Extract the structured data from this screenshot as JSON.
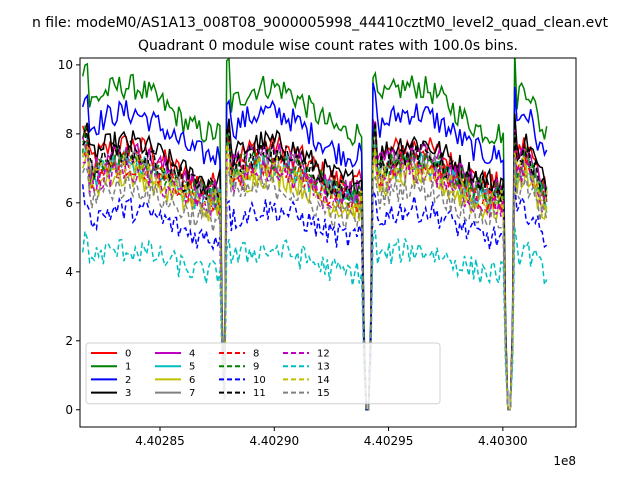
{
  "chart_data": {
    "type": "line",
    "suptitle": "n file: modeM0/AS1A13_008T08_9000005998_44410cztM0_level2_quad_clean.evt",
    "title": "Quadrant 0 module wise count rates with 100.0s bins.",
    "xlabel": "",
    "ylabel": "",
    "x_offset_label": "1e8",
    "xlim": [
      440281500,
      440303200
    ],
    "ylim": [
      -0.5,
      10.2
    ],
    "xticks": [
      440285000,
      440290000,
      440295000,
      440300000
    ],
    "xtick_labels": [
      "4.40285",
      "4.40290",
      "4.40295",
      "4.40300"
    ],
    "yticks": [
      0,
      2,
      4,
      6,
      8,
      10
    ],
    "ytick_labels": [
      "0",
      "2",
      "4",
      "6",
      "8",
      "10"
    ],
    "grid": false,
    "legend_position": "lower-left",
    "legend_columns": 4,
    "time_start": 440281620,
    "time_end": 440302000,
    "bin_seconds": 100,
    "gaps": [
      {
        "start": 440287700,
        "end": 440287870,
        "min_value": 0.3
      },
      {
        "start": 440293860,
        "end": 440294230,
        "min_value": 0.0
      },
      {
        "start": 440300050,
        "end": 440300460,
        "min_value": 0.0
      }
    ],
    "series": [
      {
        "name": "0",
        "color": "#ff0000",
        "dash": "solid",
        "base": 7.1
      },
      {
        "name": "1",
        "color": "#008000",
        "dash": "solid",
        "base": 8.7
      },
      {
        "name": "2",
        "color": "#0000ff",
        "dash": "solid",
        "base": 8.0
      },
      {
        "name": "3",
        "color": "#000000",
        "dash": "solid",
        "base": 7.2
      },
      {
        "name": "4",
        "color": "#bf00bf",
        "dash": "solid",
        "base": 6.9
      },
      {
        "name": "5",
        "color": "#00bfbf",
        "dash": "solid",
        "base": 6.6
      },
      {
        "name": "6",
        "color": "#bfbf00",
        "dash": "solid",
        "base": 6.3
      },
      {
        "name": "7",
        "color": "#808080",
        "dash": "solid",
        "base": 6.7
      },
      {
        "name": "8",
        "color": "#ff0000",
        "dash": "dashed",
        "base": 6.6
      },
      {
        "name": "9",
        "color": "#008000",
        "dash": "dashed",
        "base": 6.8
      },
      {
        "name": "10",
        "color": "#0000ff",
        "dash": "dashed",
        "base": 5.4
      },
      {
        "name": "11",
        "color": "#000000",
        "dash": "dashed",
        "base": 6.9
      },
      {
        "name": "12",
        "color": "#bf00bf",
        "dash": "dashed",
        "base": 6.4
      },
      {
        "name": "13",
        "color": "#00bfbf",
        "dash": "dashed",
        "base": 4.3
      },
      {
        "name": "14",
        "color": "#bfbf00",
        "dash": "dashed",
        "base": 6.5
      },
      {
        "name": "15",
        "color": "#808080",
        "dash": "dashed",
        "base": 6.0
      }
    ]
  }
}
